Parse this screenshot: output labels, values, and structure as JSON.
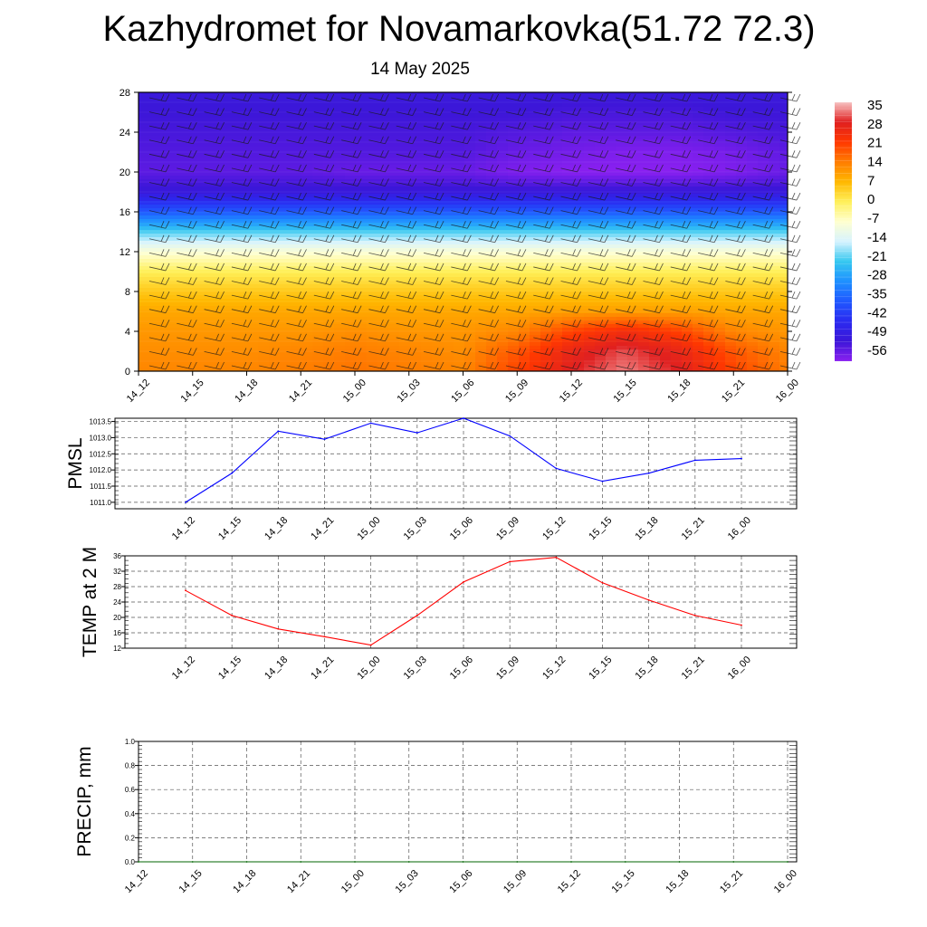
{
  "header": {
    "title": "Kazhydromet for Novamarkovka(51.72 72.3)",
    "subtitle": "14 May 2025"
  },
  "chart_data": [
    {
      "type": "heatmap",
      "title": "",
      "x_categories": [
        "14_12",
        "14_15",
        "14_18",
        "14_21",
        "15_00",
        "15_03",
        "15_06",
        "15_09",
        "15_12",
        "15_15",
        "15_18",
        "15_21",
        "16_00"
      ],
      "y_ticks": [
        0,
        4,
        8,
        12,
        16,
        20,
        24,
        28
      ],
      "ylim": [
        0,
        28
      ],
      "colorbar_ticks": [
        35,
        28,
        21,
        14,
        7,
        0,
        -7,
        -14,
        -21,
        -28,
        -35,
        -42,
        -49,
        -56
      ],
      "colorbar_colors": [
        "#f7c2c2",
        "#e02020",
        "#ff3800",
        "#ff7d00",
        "#ffb800",
        "#fff05a",
        "#ffffd0",
        "#d6f3ff",
        "#36c8f0",
        "#1e90ff",
        "#2058ff",
        "#2a2af0",
        "#3c16d8",
        "#8a20f0"
      ],
      "rows_y": [
        0,
        2,
        4,
        6,
        8,
        10,
        12,
        14,
        16,
        18,
        20,
        22,
        24,
        26,
        28
      ],
      "values": [
        [
          13,
          13,
          13,
          14,
          15,
          14,
          13,
          20,
          28,
          32,
          28,
          20,
          14
        ],
        [
          12,
          12,
          12,
          13,
          14,
          13,
          12,
          18,
          26,
          30,
          26,
          18,
          13
        ],
        [
          11,
          11,
          11,
          11,
          12,
          11,
          11,
          13,
          20,
          24,
          20,
          13,
          11
        ],
        [
          9,
          9,
          9,
          9,
          9,
          9,
          9,
          9,
          10,
          10,
          10,
          9,
          9
        ],
        [
          5,
          5,
          5,
          5,
          5,
          5,
          5,
          5,
          5,
          5,
          5,
          5,
          5
        ],
        [
          0,
          0,
          0,
          0,
          0,
          0,
          0,
          0,
          0,
          0,
          0,
          0,
          0
        ],
        [
          -8,
          -8,
          -8,
          -8,
          -8,
          -8,
          -8,
          -8,
          -8,
          -8,
          -8,
          -8,
          -8
        ],
        [
          -20,
          -20,
          -20,
          -20,
          -20,
          -20,
          -20,
          -20,
          -20,
          -20,
          -20,
          -20,
          -20
        ],
        [
          -35,
          -35,
          -35,
          -35,
          -35,
          -35,
          -35,
          -35,
          -35,
          -35,
          -35,
          -35,
          -35
        ],
        [
          -48,
          -48,
          -48,
          -48,
          -48,
          -48,
          -48,
          -48,
          -48,
          -48,
          -48,
          -48,
          -48
        ],
        [
          -52,
          -52,
          -52,
          -52,
          -53,
          -53,
          -53,
          -55,
          -56,
          -56,
          -56,
          -55,
          -53
        ],
        [
          -51,
          -51,
          -51,
          -51,
          -51,
          -51,
          -51,
          -53,
          -54,
          -55,
          -55,
          -54,
          -52
        ],
        [
          -50,
          -50,
          -50,
          -50,
          -50,
          -50,
          -50,
          -51,
          -52,
          -52,
          -52,
          -51,
          -50
        ],
        [
          -49,
          -49,
          -49,
          -49,
          -49,
          -49,
          -49,
          -49,
          -50,
          -50,
          -50,
          -49,
          -49
        ],
        [
          -48,
          -48,
          -48,
          -48,
          -48,
          -48,
          -48,
          -48,
          -48,
          -48,
          -48,
          -48,
          -48
        ]
      ]
    },
    {
      "type": "line",
      "ylabel": "PMSL",
      "x": [
        "14_12",
        "14_15",
        "14_18",
        "14_21",
        "15_00",
        "15_03",
        "15_06",
        "15_09",
        "15_12",
        "15_15",
        "15_18",
        "15_21",
        "16_00"
      ],
      "series": [
        {
          "values": [
            1011.0,
            1011.9,
            1013.2,
            1012.95,
            1013.45,
            1013.15,
            1013.6,
            1013.05,
            1012.05,
            1011.65,
            1011.9,
            1012.3,
            1012.35
          ],
          "color": "#0000ff"
        }
      ],
      "ylim": [
        1010.8,
        1013.6
      ],
      "y_ticks": [
        "1011.0",
        "1011.5",
        "1012.0",
        "1012.5",
        "1013.0",
        "1013.5"
      ],
      "grid": true
    },
    {
      "type": "line",
      "ylabel": "TEMP at 2 M",
      "x": [
        "14_12",
        "14_15",
        "14_18",
        "14_21",
        "15_00",
        "15_03",
        "15_06",
        "15_09",
        "15_12",
        "15_15",
        "15_18",
        "15_21",
        "16_00"
      ],
      "series": [
        {
          "values": [
            27,
            20.5,
            17,
            15,
            12.8,
            20.5,
            29.2,
            34.5,
            35.6,
            29,
            24.5,
            20.5,
            18
          ],
          "color": "#ff0000"
        }
      ],
      "ylim": [
        12,
        36
      ],
      "y_ticks": [
        "12",
        "16",
        "20",
        "24",
        "28",
        "32",
        "36"
      ],
      "grid": true
    },
    {
      "type": "line",
      "ylabel": "PRECIP, mm",
      "x": [
        "14_12",
        "14_15",
        "14_18",
        "14_21",
        "15_00",
        "15_03",
        "15_06",
        "15_09",
        "15_12",
        "15_15",
        "15_18",
        "15_21",
        "16_00"
      ],
      "series": [
        {
          "values": [
            0,
            0,
            0,
            0,
            0,
            0,
            0,
            0,
            0,
            0,
            0,
            0,
            0
          ],
          "color": "#006400"
        }
      ],
      "ylim": [
        0,
        1
      ],
      "y_ticks": [
        "0.0",
        "0.2",
        "0.4",
        "0.6",
        "0.8",
        "1.0"
      ],
      "grid": true
    }
  ]
}
